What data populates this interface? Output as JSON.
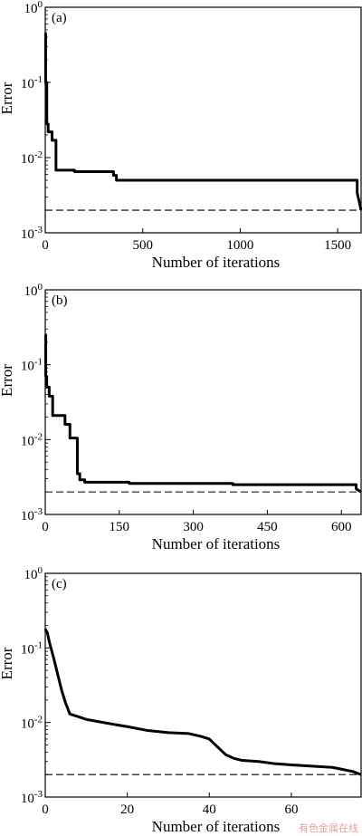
{
  "chart_data": [
    {
      "type": "line",
      "panel_label": "(a)",
      "xlabel": "Number of iterations",
      "ylabel": "Error",
      "xlim": [
        0,
        1620
      ],
      "ylim": [
        0.001,
        1
      ],
      "yscale": "log",
      "xticks": [
        "0",
        "500",
        "1000",
        "1500"
      ],
      "xtick_values": [
        0,
        500,
        1000,
        1500
      ],
      "yticks": [
        {
          "base": "10",
          "exp": "0",
          "value": 1
        },
        {
          "base": "10",
          "exp": "-1",
          "value": 0.1
        },
        {
          "base": "10",
          "exp": "-2",
          "value": 0.01
        },
        {
          "base": "10",
          "exp": "-3",
          "value": 0.001
        }
      ],
      "reference_line": 0.002,
      "series": [
        {
          "x": [
            0,
            2,
            2,
            8,
            8,
            15,
            15,
            35,
            35,
            55,
            55,
            150,
            150,
            350,
            350,
            365,
            365,
            1600,
            1600,
            1620
          ],
          "y": [
            0.45,
            0.45,
            0.1,
            0.1,
            0.028,
            0.028,
            0.022,
            0.022,
            0.017,
            0.017,
            0.0068,
            0.0068,
            0.0065,
            0.0065,
            0.0058,
            0.0058,
            0.005,
            0.005,
            0.0034,
            0.002
          ]
        }
      ]
    },
    {
      "type": "line",
      "panel_label": "(b)",
      "xlabel": "Number of iterations",
      "ylabel": "Error",
      "xlim": [
        0,
        640
      ],
      "ylim": [
        0.001,
        1
      ],
      "yscale": "log",
      "xticks": [
        "0",
        "150",
        "300",
        "450",
        "600"
      ],
      "xtick_values": [
        0,
        150,
        300,
        450,
        600
      ],
      "yticks": [
        {
          "base": "10",
          "exp": "0",
          "value": 1
        },
        {
          "base": "10",
          "exp": "-1",
          "value": 0.1
        },
        {
          "base": "10",
          "exp": "-2",
          "value": 0.01
        },
        {
          "base": "10",
          "exp": "-3",
          "value": 0.001
        }
      ],
      "reference_line": 0.002,
      "series": [
        {
          "x": [
            0,
            1,
            1,
            3,
            3,
            8,
            8,
            15,
            15,
            40,
            40,
            50,
            50,
            65,
            65,
            70,
            70,
            80,
            80,
            170,
            170,
            380,
            380,
            630,
            630,
            640
          ],
          "y": [
            0.25,
            0.25,
            0.07,
            0.07,
            0.05,
            0.05,
            0.038,
            0.038,
            0.021,
            0.021,
            0.016,
            0.016,
            0.0105,
            0.0105,
            0.0035,
            0.0035,
            0.0029,
            0.0029,
            0.0027,
            0.0027,
            0.0026,
            0.0026,
            0.0025,
            0.0025,
            0.0022,
            0.002
          ]
        }
      ]
    },
    {
      "type": "line",
      "panel_label": "(c)",
      "xlabel": "Number of iterations",
      "ylabel": "Error",
      "xlim": [
        0,
        77
      ],
      "ylim": [
        0.001,
        1
      ],
      "yscale": "log",
      "xticks": [
        "0",
        "20",
        "40",
        "60"
      ],
      "xtick_values": [
        0,
        20,
        40,
        60
      ],
      "yticks": [
        {
          "base": "10",
          "exp": "0",
          "value": 1
        },
        {
          "base": "10",
          "exp": "-1",
          "value": 0.1
        },
        {
          "base": "10",
          "exp": "-2",
          "value": 0.01
        },
        {
          "base": "10",
          "exp": "-3",
          "value": 0.001
        }
      ],
      "reference_line": 0.002,
      "series": [
        {
          "x": [
            0,
            0.5,
            1,
            2,
            3,
            4,
            5,
            6,
            8,
            10,
            12,
            15,
            20,
            25,
            30,
            35,
            38,
            40,
            42,
            44,
            46,
            48,
            52,
            56,
            60,
            65,
            70,
            75,
            77
          ],
          "y": [
            0.18,
            0.16,
            0.12,
            0.075,
            0.045,
            0.027,
            0.018,
            0.013,
            0.012,
            0.011,
            0.0105,
            0.0098,
            0.0088,
            0.0078,
            0.0073,
            0.0071,
            0.0065,
            0.006,
            0.0047,
            0.0037,
            0.0033,
            0.0031,
            0.003,
            0.0028,
            0.0027,
            0.0026,
            0.0025,
            0.0022,
            0.002
          ]
        }
      ]
    }
  ],
  "watermark": "有色金属在线"
}
